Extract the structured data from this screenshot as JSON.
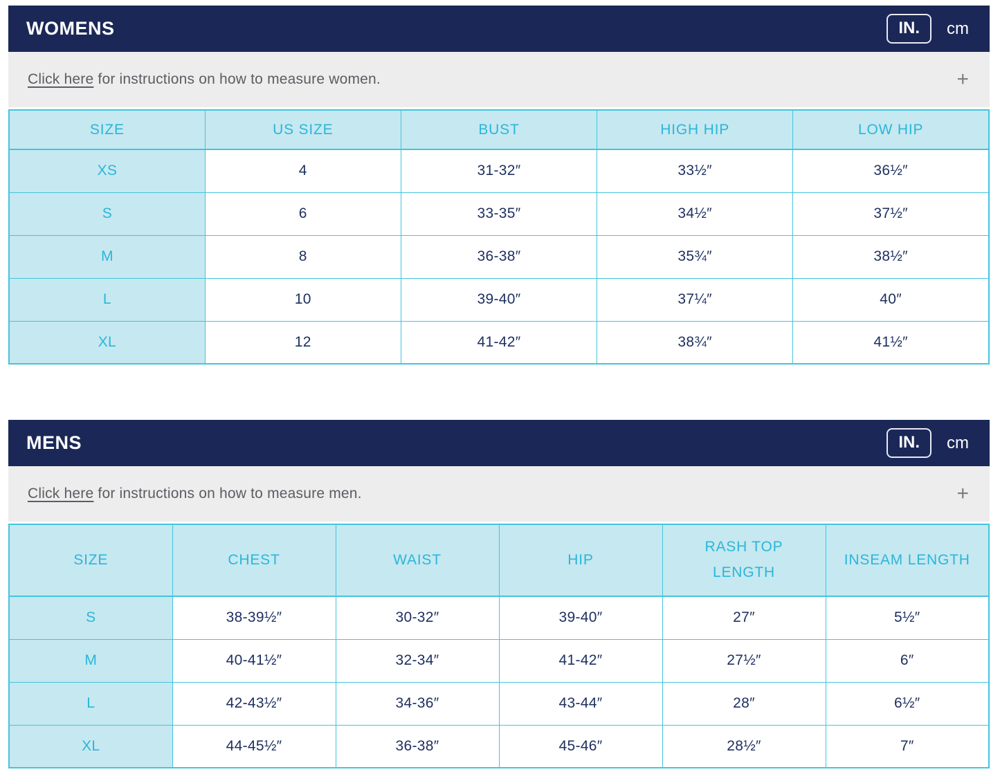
{
  "units": {
    "in_label": "IN.",
    "cm_label": "cm"
  },
  "expand_icon": "+",
  "colors": {
    "navy": "#1b2857",
    "cyan_text": "#2bb6d9",
    "light_blue_bg": "#c6e8f0",
    "border_cyan": "#43c4dd",
    "cell_text_navy": "#1e3060",
    "gray_bar": "#ededee",
    "gray_text": "#5a5d61"
  },
  "womens": {
    "title": "WOMENS",
    "instructions": {
      "link": "Click here",
      "rest": " for instructions on how to measure women."
    },
    "table": {
      "headers": [
        "SIZE",
        "US SIZE",
        "BUST",
        "HIGH HIP",
        "LOW HIP"
      ],
      "rows": [
        [
          "XS",
          "4",
          "31-32″",
          "33½″",
          "36½″"
        ],
        [
          "S",
          "6",
          "33-35″",
          "34½″",
          "37½″"
        ],
        [
          "M",
          "8",
          "36-38″",
          "35¾″",
          "38½″"
        ],
        [
          "L",
          "10",
          "39-40″",
          "37¼″",
          "40″"
        ],
        [
          "XL",
          "12",
          "41-42″",
          "38¾″",
          "41½″"
        ]
      ]
    }
  },
  "mens": {
    "title": "MENS",
    "instructions": {
      "link": "Click here",
      "rest": " for instructions on how to measure men."
    },
    "table": {
      "headers": [
        "SIZE",
        "CHEST",
        "WAIST",
        "HIP",
        "RASH TOP\nLENGTH",
        "INSEAM LENGTH"
      ],
      "rows": [
        [
          "S",
          "38-39½″",
          "30-32″",
          "39-40″",
          "27″",
          "5½″"
        ],
        [
          "M",
          "40-41½″",
          "32-34″",
          "41-42″",
          "27½″",
          "6″"
        ],
        [
          "L",
          "42-43½″",
          "34-36″",
          "43-44″",
          "28″",
          "6½″"
        ],
        [
          "XL",
          "44-45½″",
          "36-38″",
          "45-46″",
          "28½″",
          "7″"
        ]
      ]
    }
  }
}
